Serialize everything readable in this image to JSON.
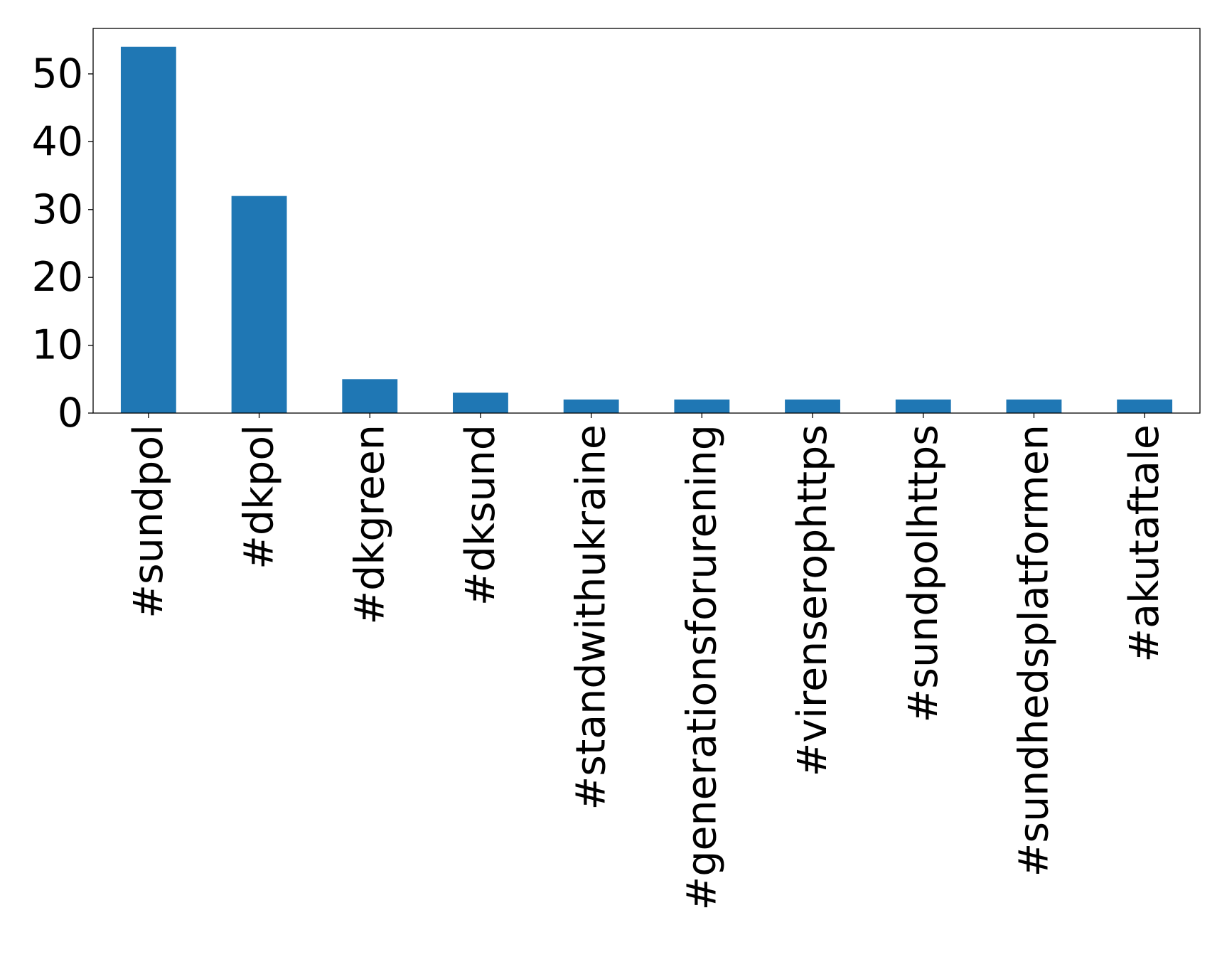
{
  "chart_data": {
    "type": "bar",
    "categories": [
      "#sundpol",
      "#dkpol",
      "#dkgreen",
      "#dksund",
      "#standwithukraine",
      "#generationsforurening",
      "#virenserophttps",
      "#sundpolhttps",
      "#sundhedsplatformen",
      "#akutaftale"
    ],
    "values": [
      54,
      32,
      5,
      3,
      2,
      2,
      2,
      2,
      2,
      2
    ],
    "title": "",
    "xlabel": "",
    "ylabel": "",
    "ylim": [
      0,
      56.7
    ],
    "yticks": [
      0,
      10,
      20,
      30,
      40,
      50
    ],
    "grid": false,
    "legend": "none",
    "bar_color": "#1f77b4"
  }
}
